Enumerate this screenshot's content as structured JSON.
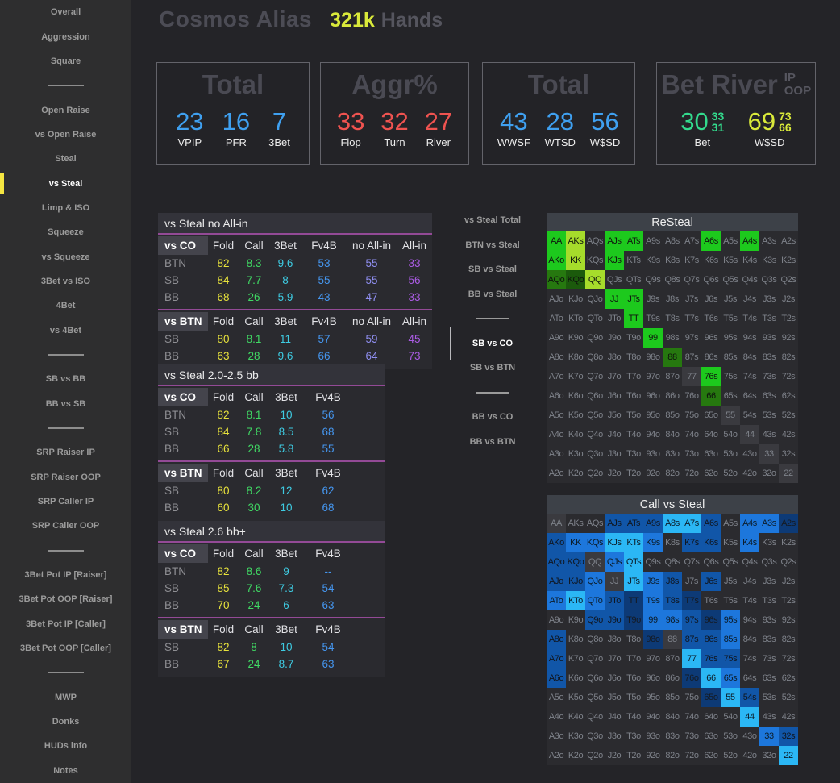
{
  "header": {
    "title": "Cosmos Alias",
    "hands_value": "321k",
    "hands_label": "Hands"
  },
  "sidebar": {
    "items": [
      {
        "label": "Overall"
      },
      {
        "label": "Aggression"
      },
      {
        "label": "Square"
      },
      {
        "divider": true
      },
      {
        "label": "Open Raise"
      },
      {
        "label": "vs Open Raise"
      },
      {
        "label": "Steal"
      },
      {
        "label": "vs Steal",
        "active": true
      },
      {
        "label": "Limp & ISO"
      },
      {
        "label": "Squeeze"
      },
      {
        "label": "vs Squeeze"
      },
      {
        "label": "3Bet vs ISO"
      },
      {
        "label": "4Bet"
      },
      {
        "label": "vs 4Bet"
      },
      {
        "divider": true
      },
      {
        "label": "SB vs BB"
      },
      {
        "label": "BB vs SB"
      },
      {
        "divider": true
      },
      {
        "label": "SRP Raiser IP"
      },
      {
        "label": "SRP Raiser OOP"
      },
      {
        "label": "SRP Caller IP"
      },
      {
        "label": "SRP Caller OOP"
      },
      {
        "divider": true
      },
      {
        "label": "3Bet Pot IP [Raiser]"
      },
      {
        "label": "3Bet Pot OOP [Raiser]"
      },
      {
        "label": "3Bet Pot IP [Caller]"
      },
      {
        "label": "3Bet Pot OOP [Caller]"
      },
      {
        "divider": true
      },
      {
        "label": "MWP"
      },
      {
        "label": "Donks"
      },
      {
        "label": "HUDs info"
      },
      {
        "label": "Notes"
      }
    ]
  },
  "stat_boxes": [
    {
      "title": "Total",
      "stats": [
        {
          "value": "23",
          "label": "VPIP",
          "color": "blue"
        },
        {
          "value": "16",
          "label": "PFR",
          "color": "blue"
        },
        {
          "value": "7",
          "label": "3Bet",
          "color": "blue"
        }
      ]
    },
    {
      "title": "Aggr%",
      "stats": [
        {
          "value": "33",
          "label": "Flop",
          "color": "red"
        },
        {
          "value": "32",
          "label": "Turn",
          "color": "red"
        },
        {
          "value": "27",
          "label": "River",
          "color": "red"
        }
      ]
    },
    {
      "title": "Total",
      "stats": [
        {
          "value": "43",
          "label": "WWSF",
          "color": "blue"
        },
        {
          "value": "28",
          "label": "WTSD",
          "color": "blue"
        },
        {
          "value": "56",
          "label": "W$SD",
          "color": "blue"
        }
      ]
    },
    {
      "title": "Bet River",
      "title_suffix": [
        "IP",
        "OOP"
      ],
      "stats": [
        {
          "value": "30",
          "sub": [
            "33",
            "31"
          ],
          "label": "Bet",
          "color": "green"
        },
        {
          "value": "69",
          "sub": [
            "73",
            "66"
          ],
          "label": "W$SD",
          "color": "lime"
        }
      ]
    }
  ],
  "tables": [
    {
      "title": "vs Steal no All-in",
      "col_classes": [
        "fold",
        "call",
        "threebet",
        "fv4b",
        "no_allin",
        "allin"
      ],
      "sections": [
        {
          "label": "vs CO",
          "headers": [
            "Fold",
            "Call",
            "3Bet",
            "Fv4B",
            "no All-in",
            "All-in"
          ],
          "rows": [
            [
              "BTN",
              "82",
              "8.3",
              "9.6",
              "53",
              "55",
              "33"
            ],
            [
              "SB",
              "84",
              "7.7",
              "8",
              "55",
              "55",
              "56"
            ],
            [
              "BB",
              "68",
              "26",
              "5.9",
              "43",
              "47",
              "33"
            ]
          ]
        },
        {
          "label": "vs BTN",
          "headers": [
            "Fold",
            "Call",
            "3Bet",
            "Fv4B",
            "no All-in",
            "All-in"
          ],
          "rows": [
            [
              "SB",
              "80",
              "8.1",
              "11",
              "57",
              "59",
              "45"
            ],
            [
              "BB",
              "63",
              "28",
              "9.6",
              "66",
              "64",
              "73"
            ]
          ]
        }
      ]
    },
    {
      "title": "vs Steal 2.0-2.5 bb",
      "col_classes": [
        "fold",
        "call",
        "threebet",
        "fv4b"
      ],
      "sections": [
        {
          "label": "vs CO",
          "headers": [
            "Fold",
            "Call",
            "3Bet",
            "Fv4B"
          ],
          "rows": [
            [
              "BTN",
              "82",
              "8.1",
              "10",
              "56"
            ],
            [
              "SB",
              "84",
              "7.8",
              "8.5",
              "68"
            ],
            [
              "BB",
              "66",
              "28",
              "5.8",
              "55"
            ]
          ]
        },
        {
          "label": "vs BTN",
          "headers": [
            "Fold",
            "Call",
            "3Bet",
            "Fv4B"
          ],
          "rows": [
            [
              "SB",
              "80",
              "8.2",
              "12",
              "62"
            ],
            [
              "BB",
              "60",
              "30",
              "10",
              "68"
            ]
          ]
        }
      ]
    },
    {
      "title": "vs Steal 2.6 bb+",
      "col_classes": [
        "fold",
        "call",
        "threebet",
        "fv4b"
      ],
      "sections": [
        {
          "label": "vs CO",
          "headers": [
            "Fold",
            "Call",
            "3Bet",
            "Fv4B"
          ],
          "rows": [
            [
              "BTN",
              "82",
              "8.6",
              "9",
              "--"
            ],
            [
              "SB",
              "85",
              "7.6",
              "7.3",
              "54"
            ],
            [
              "BB",
              "70",
              "24",
              "6",
              "63"
            ]
          ]
        },
        {
          "label": "vs BTN",
          "headers": [
            "Fold",
            "Call",
            "3Bet",
            "Fv4B"
          ],
          "rows": [
            [
              "SB",
              "82",
              "8",
              "10",
              "54"
            ],
            [
              "BB",
              "67",
              "24",
              "8.7",
              "63"
            ]
          ]
        }
      ]
    }
  ],
  "mid_nav": {
    "items": [
      {
        "label": "vs Steal Total"
      },
      {
        "label": "BTN vs Steal"
      },
      {
        "label": "SB vs Steal"
      },
      {
        "label": "BB vs Steal"
      },
      {
        "divider": true
      },
      {
        "label": "SB vs CO",
        "active": true
      },
      {
        "label": "SB vs BTN"
      },
      {
        "divider": true
      },
      {
        "label": "BB vs CO"
      },
      {
        "label": "BB vs BTN"
      }
    ]
  },
  "colors": {
    "accent_yellow": "#f5e642",
    "hands_lime": "#d9e93a",
    "magenta_line": "#934a96",
    "g1": "#1dc91d",
    "g2": "#a6dc2b",
    "g3": "#26780f",
    "g4": "#1b5a0c",
    "p": "#3a3a3f",
    "L": "#2bb7f5",
    "M": "#1d77dc",
    "MD": "#1156a8",
    "D": "#0d3a76",
    "fold": "#e7e23c",
    "call": "#40d964",
    "threebet": "#3ecbe2",
    "fv4b": "#4596ef",
    "no_allin": "#8f8ef0",
    "allin": "#ab5ce5"
  },
  "matrices": [
    {
      "title": "ReSteal",
      "rows": [
        [
          "AA|g1",
          "AKs|g2",
          "AQs",
          "AJs|g1",
          "ATs|g1",
          "A9s",
          "A8s",
          "A7s",
          "A6s|g1",
          "A5s",
          "A4s|g1",
          "A3s",
          "A2s"
        ],
        [
          "AKo|g1",
          "KK|g2",
          "KQs",
          "KJs|g1",
          "KTs",
          "K9s",
          "K8s",
          "K7s",
          "K6s",
          "K5s",
          "K4s",
          "K3s",
          "K2s"
        ],
        [
          "AQo|g3",
          "KQo|g4",
          "QQ|g2",
          "QJs",
          "QTs",
          "Q9s",
          "Q8s",
          "Q7s",
          "Q6s",
          "Q5s",
          "Q4s",
          "Q3s",
          "Q2s"
        ],
        [
          "AJo",
          "KJo",
          "QJo",
          "JJ|g1",
          "JTs|g1",
          "J9s",
          "J8s",
          "J7s",
          "J6s",
          "J5s",
          "J4s",
          "J3s",
          "J2s"
        ],
        [
          "ATo",
          "KTo",
          "QTo",
          "JTo",
          "TT|g1",
          "T9s",
          "T8s",
          "T7s",
          "T6s",
          "T5s",
          "T4s",
          "T3s",
          "T2s"
        ],
        [
          "A9o",
          "K9o",
          "Q9o",
          "J9o",
          "T9o",
          "99|g1",
          "98s",
          "97s",
          "96s",
          "95s",
          "94s",
          "93s",
          "92s"
        ],
        [
          "A8o",
          "K8o",
          "Q8o",
          "J8o",
          "T8o",
          "98o",
          "88|g3",
          "87s",
          "86s",
          "85s",
          "84s",
          "83s",
          "82s"
        ],
        [
          "A7o",
          "K7o",
          "Q7o",
          "J7o",
          "T7o",
          "97o",
          "87o",
          "77|p",
          "76s|g1",
          "75s",
          "74s",
          "73s",
          "72s"
        ],
        [
          "A6o",
          "K6o",
          "Q6o",
          "J6o",
          "T6o",
          "96o",
          "86o",
          "76o",
          "66|g3",
          "65s",
          "64s",
          "63s",
          "62s"
        ],
        [
          "A5o",
          "K5o",
          "Q5o",
          "J5o",
          "T5o",
          "95o",
          "85o",
          "75o",
          "65o",
          "55|p",
          "54s",
          "53s",
          "52s"
        ],
        [
          "A4o",
          "K4o",
          "Q4o",
          "J4o",
          "T4o",
          "94o",
          "84o",
          "74o",
          "64o",
          "54o",
          "44|p",
          "43s",
          "42s"
        ],
        [
          "A3o",
          "K3o",
          "Q3o",
          "J3o",
          "T3o",
          "93o",
          "83o",
          "73o",
          "63o",
          "53o",
          "43o",
          "33|p",
          "32s"
        ],
        [
          "A2o",
          "K2o",
          "Q2o",
          "J2o",
          "T2o",
          "92o",
          "82o",
          "72o",
          "62o",
          "52o",
          "42o",
          "32o",
          "22|p"
        ]
      ]
    },
    {
      "title": "Call vs Steal",
      "rows": [
        [
          "AA|p",
          "AKs",
          "AQs",
          "AJs|MD",
          "ATs|MD",
          "A9s|MD",
          "A8s|L",
          "A7s|L",
          "A6s|MD",
          "A5s",
          "A4s|M",
          "A3s|M",
          "A2s|D"
        ],
        [
          "AKo|MD",
          "KK|M",
          "KQs|M",
          "KJs|L",
          "KTs|L",
          "K9s|M",
          "K8s",
          "K7s|MD",
          "K6s|MD",
          "K5s",
          "K4s|M",
          "K3s",
          "K2s"
        ],
        [
          "AQo|MD",
          "KQo|MD",
          "QQ|p",
          "QJs|M",
          "QTs|L",
          "Q9s",
          "Q8s",
          "Q7s",
          "Q6s",
          "Q5s",
          "Q4s",
          "Q3s",
          "Q2s"
        ],
        [
          "AJo|MD",
          "KJo|MD",
          "QJo|M",
          "JJ|p",
          "JTs|L",
          "J9s|M",
          "J8s|MD",
          "J7s",
          "J6s|MD",
          "J5s",
          "J4s",
          "J3s",
          "J2s"
        ],
        [
          "ATo|M",
          "KTo|L",
          "QTo|M",
          "JTo|MD",
          "TT|D",
          "T9s|M",
          "T8s|MD",
          "T7s|D",
          "T6s",
          "T5s",
          "T4s",
          "T3s",
          "T2s"
        ],
        [
          "A9o",
          "K9o",
          "Q9o|MD",
          "J9o|MD",
          "T9o|D",
          "99|M",
          "98s|M",
          "97s|MD",
          "96s|D",
          "95s|M",
          "94s",
          "93s",
          "92s"
        ],
        [
          "A8o|MD",
          "K8o",
          "Q8o",
          "J8o",
          "T8o",
          "98o|D",
          "88|p",
          "87s|MD",
          "86s|MD",
          "85s|M",
          "84s",
          "83s",
          "82s"
        ],
        [
          "A7o|MD",
          "K7o",
          "Q7o",
          "J7o",
          "T7o",
          "97o",
          "87o",
          "77|L",
          "76s|MD",
          "75s|MD",
          "74s",
          "73s",
          "72s"
        ],
        [
          "A6o|MD",
          "K6o",
          "Q6o",
          "J6o",
          "T6o",
          "96o",
          "86o",
          "76o|D",
          "66|L",
          "65s|M",
          "64s",
          "63s",
          "62s"
        ],
        [
          "A5o",
          "K5o",
          "Q5o",
          "J5o",
          "T5o",
          "95o",
          "85o",
          "75o",
          "65o|D",
          "55|L",
          "54s|MD",
          "53s",
          "52s"
        ],
        [
          "A4o",
          "K4o",
          "Q4o",
          "J4o",
          "T4o",
          "94o",
          "84o",
          "74o",
          "64o",
          "54o",
          "44|L",
          "43s",
          "42s"
        ],
        [
          "A3o",
          "K3o",
          "Q3o",
          "J3o",
          "T3o",
          "93o",
          "83o",
          "73o",
          "63o",
          "53o",
          "43o",
          "33|M",
          "32s|MD"
        ],
        [
          "A2o",
          "K2o",
          "Q2o",
          "J2o",
          "T2o",
          "92o",
          "82o",
          "72o",
          "62o",
          "52o",
          "42o",
          "32o",
          "22|L"
        ]
      ]
    }
  ]
}
